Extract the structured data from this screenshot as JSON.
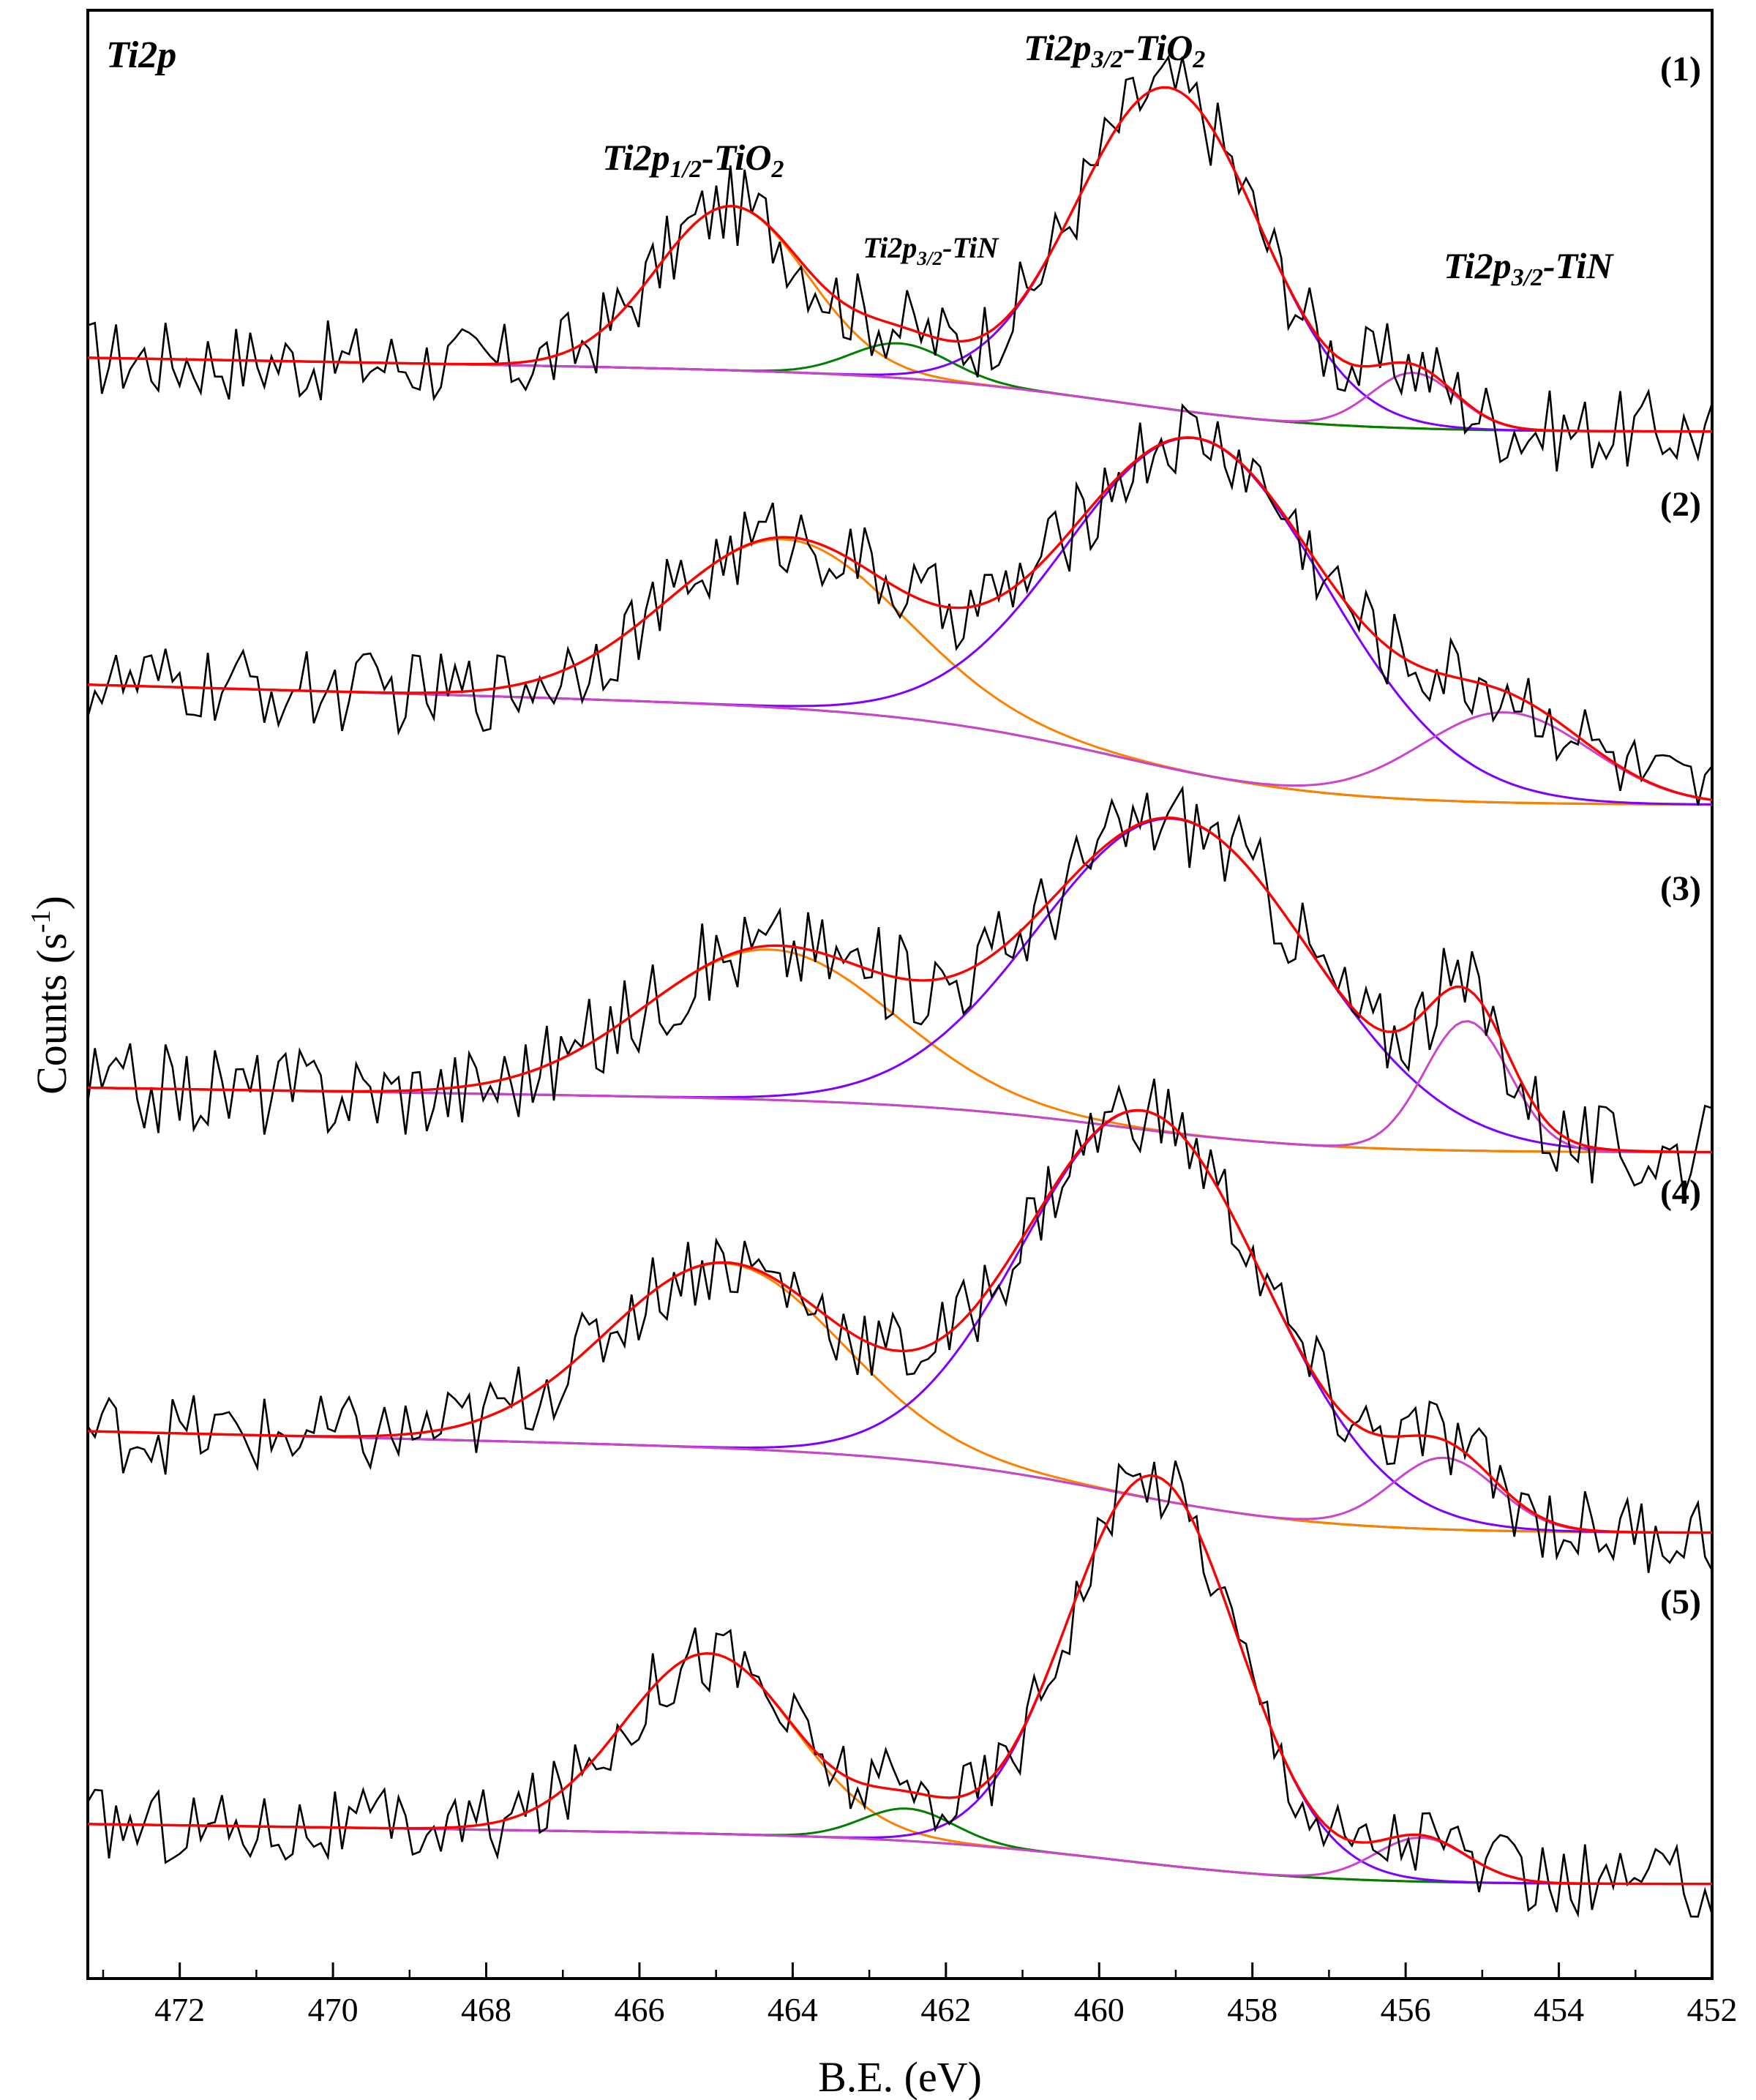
{
  "chart_data": {
    "type": "line",
    "title": "",
    "corner_label": "Ti2p",
    "xlabel": "B.E. (eV)",
    "ylabel": "Counts (s",
    "ylabel_sup": "-1",
    "ylabel_close": ")",
    "xlim": [
      473.2,
      452
    ],
    "xticks": [
      472,
      470,
      468,
      466,
      464,
      462,
      460,
      458,
      456,
      454,
      452
    ],
    "peak_labels": [
      {
        "main": "Ti2p",
        "sub": "1/2",
        "rest": "-TiO",
        "sub2": "2",
        "x": 465.3,
        "size": "large"
      },
      {
        "main": "Ti2p",
        "sub": "3/2",
        "rest": "-TiN",
        "sub2": "",
        "x": 462.2,
        "size": "small"
      },
      {
        "main": "Ti2p",
        "sub": "3/2",
        "rest": "-TiO",
        "sub2": "2",
        "x": 459.8,
        "size": "large"
      },
      {
        "main": "Ti2p",
        "sub": "3/2",
        "rest": "-TiN",
        "sub2": "",
        "x": 454.4,
        "size": "large"
      }
    ],
    "colors": {
      "raw": "#000000",
      "envelope": "#ff0000",
      "tio2_12": "#ff8000",
      "tin_a": "#008000",
      "tio2_32": "#8000ff",
      "tin_b": "#cc44cc",
      "background": "#1a8a1a"
    },
    "series": [
      {
        "label": "(1)",
        "baseline_high": 0.64,
        "baseline_low": 0.0,
        "noise": 0.36,
        "peaks": [
          {
            "name": "Ti2p1/2-TiO2",
            "center": 464.8,
            "height": 1.42,
            "fwhm": 2.3,
            "color_key": "tio2_12"
          },
          {
            "name": "Ti2p3/2-TiN",
            "center": 462.6,
            "height": 0.3,
            "fwhm": 1.5,
            "color_key": "tin_a"
          },
          {
            "name": "Ti2p3/2-TiO2",
            "center": 459.1,
            "height": 2.78,
            "fwhm": 2.8,
            "color_key": "tio2_32"
          },
          {
            "name": "Ti2p3/2-TiN",
            "center": 455.9,
            "height": 0.48,
            "fwhm": 1.3,
            "color_key": "tin_b"
          }
        ]
      },
      {
        "label": "(2)",
        "baseline_high": 1.04,
        "baseline_low": 0.0,
        "noise": 0.36,
        "peaks": [
          {
            "name": "Ti2p1/2-TiO2",
            "center": 464.1,
            "height": 1.46,
            "fwhm": 3.6,
            "color_key": "tio2_12"
          },
          {
            "name": "Ti2p3/2-TiO2",
            "center": 458.7,
            "height": 2.9,
            "fwhm": 4.0,
            "color_key": "tio2_32"
          },
          {
            "name": "Ti2p3/2-TiN",
            "center": 454.7,
            "height": 0.78,
            "fwhm": 2.6,
            "color_key": "tin_b"
          }
        ]
      },
      {
        "label": "(3)",
        "baseline_high": 0.56,
        "baseline_low": 0.0,
        "noise": 0.4,
        "peaks": [
          {
            "name": "Ti2p1/2-TiO2",
            "center": 464.3,
            "height": 1.3,
            "fwhm": 3.8,
            "color_key": "tio2_12"
          },
          {
            "name": "Ti2p3/2-TiO2",
            "center": 459.0,
            "height": 2.72,
            "fwhm": 4.2,
            "color_key": "tio2_32"
          },
          {
            "name": "Ti2p3/2-TiN",
            "center": 455.2,
            "height": 1.12,
            "fwhm": 1.3,
            "color_key": "tin_b"
          }
        ]
      },
      {
        "label": "(4)",
        "baseline_high": 0.88,
        "baseline_low": 0.0,
        "noise": 0.36,
        "peaks": [
          {
            "name": "Ti2p1/2-TiO2",
            "center": 464.9,
            "height": 1.6,
            "fwhm": 3.6,
            "color_key": "tio2_12"
          },
          {
            "name": "Ti2p3/2-TiO2",
            "center": 459.4,
            "height": 3.34,
            "fwhm": 3.7,
            "color_key": "tio2_32"
          },
          {
            "name": "Ti2p3/2-TiN",
            "center": 455.5,
            "height": 0.62,
            "fwhm": 1.6,
            "color_key": "tin_b"
          }
        ]
      },
      {
        "label": "(5)",
        "baseline_high": 0.52,
        "baseline_low": 0.0,
        "noise": 0.34,
        "peaks": [
          {
            "name": "Ti2p1/2-TiO2",
            "center": 465.1,
            "height": 1.56,
            "fwhm": 2.6,
            "color_key": "tio2_12"
          },
          {
            "name": "Ti2p3/2-TiN",
            "center": 462.5,
            "height": 0.28,
            "fwhm": 1.4,
            "color_key": "tin_a"
          },
          {
            "name": "Ti2p3/2-TiO2",
            "center": 459.3,
            "height": 3.36,
            "fwhm": 2.6,
            "color_key": "tio2_32"
          },
          {
            "name": "Ti2p3/2-TiN",
            "center": 455.8,
            "height": 0.38,
            "fwhm": 1.4,
            "color_key": "tin_b"
          }
        ]
      }
    ]
  }
}
